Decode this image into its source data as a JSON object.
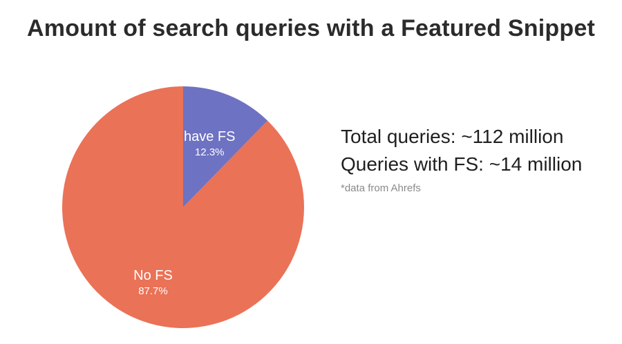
{
  "chart_data": {
    "type": "pie",
    "title": "Amount of search queries with a Featured Snippet",
    "slices": [
      {
        "name": "have FS",
        "value": 12.3,
        "value_label": "12.3%",
        "color": "#6e72c2"
      },
      {
        "name": "No FS",
        "value": 87.7,
        "value_label": "87.7%",
        "color": "#ea7257"
      }
    ],
    "start": "12 o'clock",
    "direction": "clockwise",
    "legend": "none"
  },
  "annotations": {
    "total_queries": "Total queries: ~112 million",
    "queries_with_fs": "Queries with FS: ~14 million",
    "source": "*data from Ahrefs"
  }
}
